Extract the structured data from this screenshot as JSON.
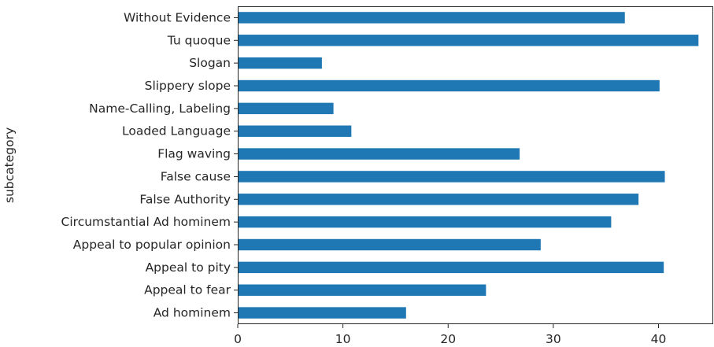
{
  "chart_data": {
    "type": "bar",
    "orientation": "horizontal",
    "categories": [
      "Ad hominem",
      "Appeal to fear",
      "Appeal to pity",
      "Appeal to popular opinion",
      "Circumstantial Ad hominem",
      "False Authority",
      "False cause",
      "Flag waving",
      "Loaded Language",
      "Name-Calling, Labeling",
      "Slippery slope",
      "Slogan",
      "Tu quoque",
      "Without Evidence"
    ],
    "values": [
      16.0,
      23.6,
      40.5,
      28.8,
      35.5,
      38.1,
      40.6,
      26.8,
      10.8,
      9.1,
      40.1,
      8.0,
      43.8,
      36.8
    ],
    "title": "",
    "xlabel": "",
    "ylabel": "subcategory",
    "xlim": [
      0,
      45.2
    ],
    "xticks": [
      0,
      10,
      20,
      30,
      40
    ],
    "grid": false,
    "bar_color": "#1f77b4"
  }
}
